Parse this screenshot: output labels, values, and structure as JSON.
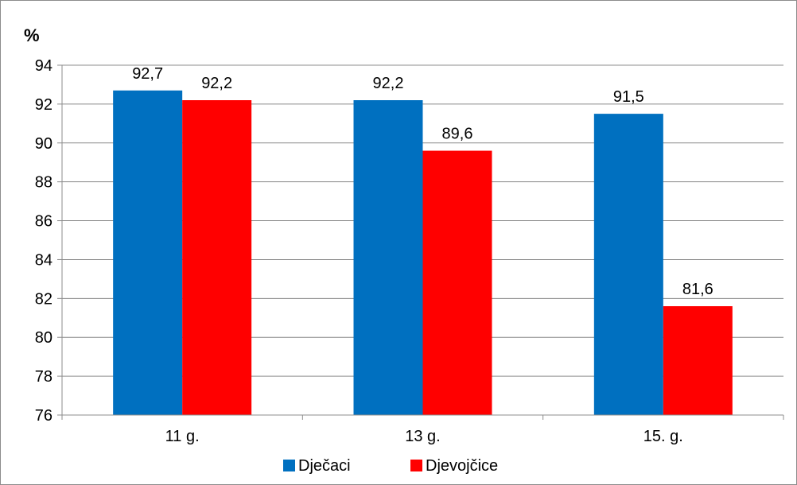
{
  "chart_data": {
    "type": "bar",
    "ylabel": "%",
    "ylim": [
      76,
      94
    ],
    "yticks": [
      76,
      78,
      80,
      82,
      84,
      86,
      88,
      90,
      92,
      94
    ],
    "categories": [
      "11 g.",
      "13 g.",
      "15. g."
    ],
    "series": [
      {
        "name": "Dječaci",
        "color": "#0070c0",
        "values": [
          92.7,
          92.2,
          91.5
        ],
        "labels": [
          "92,7",
          "92,2",
          "91,5"
        ]
      },
      {
        "name": "Djevojčice",
        "color": "#ff0000",
        "values": [
          92.2,
          89.6,
          81.6
        ],
        "labels": [
          "92,2",
          "89,6",
          "81,6"
        ]
      }
    ],
    "grid": true,
    "legend": "bottom"
  }
}
